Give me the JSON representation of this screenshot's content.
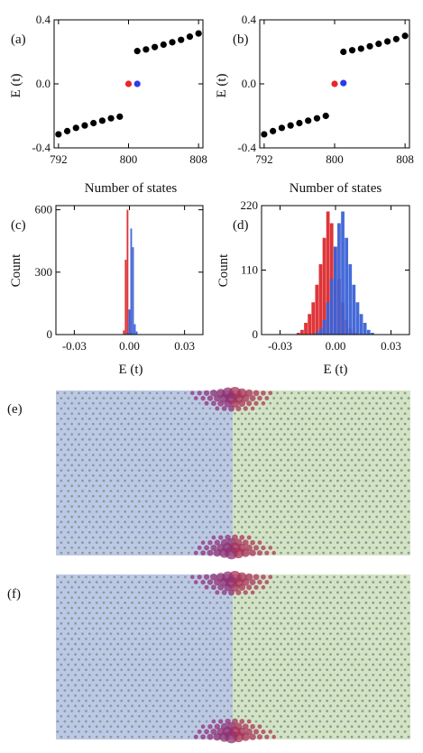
{
  "colors": {
    "black_dot": "#000000",
    "red": "#e8262b",
    "blue": "#2d3be8",
    "hist_red": "#dc2a2e",
    "hist_blue": "#3b62d6",
    "left_bg": "#bcc9e6",
    "right_bg": "#d3e4c3",
    "lattice_dot": "#8f9a9a",
    "state_dot": "#8f2f72"
  },
  "chart_data": [
    {
      "id": "a",
      "label": "(a)",
      "type": "scatter",
      "xlabel": "Number of states",
      "ylabel": "E (t)",
      "xlim": [
        791.5,
        808.5
      ],
      "ylim": [
        -0.4,
        0.4
      ],
      "xticks": [
        792,
        800,
        808
      ],
      "xtick_labels": [
        "792",
        "800",
        "808"
      ],
      "yticks": [
        -0.4,
        0.0,
        0.4
      ],
      "ytick_labels": [
        "-0.4",
        "0.0",
        "0.4"
      ],
      "series": [
        {
          "color": "black",
          "x": [
            791,
            792,
            793,
            794,
            795,
            796,
            797,
            798,
            799
          ],
          "y": [
            -0.34,
            -0.315,
            -0.295,
            -0.275,
            -0.26,
            -0.245,
            -0.23,
            -0.215,
            -0.205
          ]
        },
        {
          "color": "black",
          "x": [
            801,
            802,
            803,
            804,
            805,
            806,
            807,
            808,
            809
          ],
          "y": [
            0.205,
            0.215,
            0.23,
            0.245,
            0.26,
            0.275,
            0.295,
            0.315,
            0.34
          ]
        },
        {
          "color": "red",
          "x": [
            800
          ],
          "y": [
            0.0
          ]
        },
        {
          "color": "blue",
          "x": [
            801
          ],
          "y": [
            0.0
          ]
        }
      ]
    },
    {
      "id": "b",
      "label": "(b)",
      "type": "scatter",
      "xlabel": "Number of states",
      "ylabel": "E (t)",
      "xlim": [
        791.5,
        808.5
      ],
      "ylim": [
        -0.4,
        0.4
      ],
      "xticks": [
        792,
        800,
        808
      ],
      "xtick_labels": [
        "792",
        "800",
        "808"
      ],
      "yticks": [
        -0.4,
        0.0,
        0.4
      ],
      "ytick_labels": [
        "-0.4",
        "0.0",
        "0.4"
      ],
      "series": [
        {
          "color": "black",
          "x": [
            791,
            792,
            793,
            794,
            795,
            796,
            797,
            798,
            799
          ],
          "y": [
            -0.34,
            -0.315,
            -0.295,
            -0.275,
            -0.26,
            -0.245,
            -0.23,
            -0.215,
            -0.2
          ]
        },
        {
          "color": "black",
          "x": [
            801,
            802,
            803,
            804,
            805,
            806,
            807,
            808,
            809
          ],
          "y": [
            0.2,
            0.21,
            0.22,
            0.235,
            0.25,
            0.265,
            0.28,
            0.3,
            0.325
          ]
        },
        {
          "color": "red",
          "x": [
            800
          ],
          "y": [
            0.0
          ]
        },
        {
          "color": "blue",
          "x": [
            801
          ],
          "y": [
            0.005
          ]
        }
      ]
    },
    {
      "id": "c",
      "label": "(c)",
      "type": "bar",
      "xlabel": "E (t)",
      "ylabel": "Count",
      "xlim": [
        -0.04,
        0.04
      ],
      "ylim": [
        0,
        620
      ],
      "xticks": [
        -0.03,
        0.0,
        0.03
      ],
      "xtick_labels": [
        "-0.03",
        "0.00",
        "0.03"
      ],
      "yticks": [
        0,
        300,
        600
      ],
      "ytick_labels": [
        "0",
        "300",
        "600"
      ],
      "bin_width": 0.001,
      "series": [
        {
          "color": "red",
          "x": [
            -0.003,
            -0.002,
            -0.001,
            0.0,
            0.001
          ],
          "values": [
            20,
            360,
            600,
            120,
            10
          ]
        },
        {
          "color": "blue",
          "x": [
            -0.001,
            0.0,
            0.001,
            0.002,
            0.003,
            0.004
          ],
          "values": [
            10,
            120,
            510,
            420,
            50,
            15
          ]
        }
      ]
    },
    {
      "id": "d",
      "label": "(d)",
      "type": "bar",
      "xlabel": "E (t)",
      "ylabel": "Count",
      "xlim": [
        -0.04,
        0.04
      ],
      "ylim": [
        0,
        220
      ],
      "xticks": [
        -0.03,
        0.0,
        0.03
      ],
      "xtick_labels": [
        "-0.03",
        "0.00",
        "0.03"
      ],
      "yticks": [
        0,
        110,
        220
      ],
      "ytick_labels": [
        "0",
        "110",
        "220"
      ],
      "bin_width": 0.002,
      "series": [
        {
          "color": "red",
          "x": [
            -0.02,
            -0.018,
            -0.016,
            -0.014,
            -0.012,
            -0.01,
            -0.008,
            -0.006,
            -0.004,
            -0.002,
            0.0,
            0.002,
            0.004,
            0.006,
            0.008,
            0.01
          ],
          "values": [
            3,
            8,
            20,
            35,
            55,
            85,
            120,
            165,
            210,
            190,
            150,
            95,
            55,
            25,
            10,
            4
          ]
        },
        {
          "color": "blue",
          "x": [
            -0.01,
            -0.008,
            -0.006,
            -0.004,
            -0.002,
            0.0,
            0.002,
            0.004,
            0.006,
            0.008,
            0.01,
            0.012,
            0.014,
            0.016,
            0.018,
            0.02
          ],
          "values": [
            4,
            10,
            25,
            55,
            95,
            150,
            190,
            210,
            165,
            120,
            85,
            55,
            35,
            20,
            8,
            3
          ]
        }
      ]
    }
  ],
  "lattice_panels": [
    {
      "id": "e",
      "label": "(e)",
      "cols": 50,
      "rows": 32,
      "edge_dot_scale": [
        1,
        0.85,
        0.6,
        0.35
      ]
    },
    {
      "id": "f",
      "label": "(f)",
      "cols": 50,
      "rows": 32,
      "edge_dot_scale": [
        1,
        0.85,
        0.6,
        0.35
      ]
    }
  ]
}
